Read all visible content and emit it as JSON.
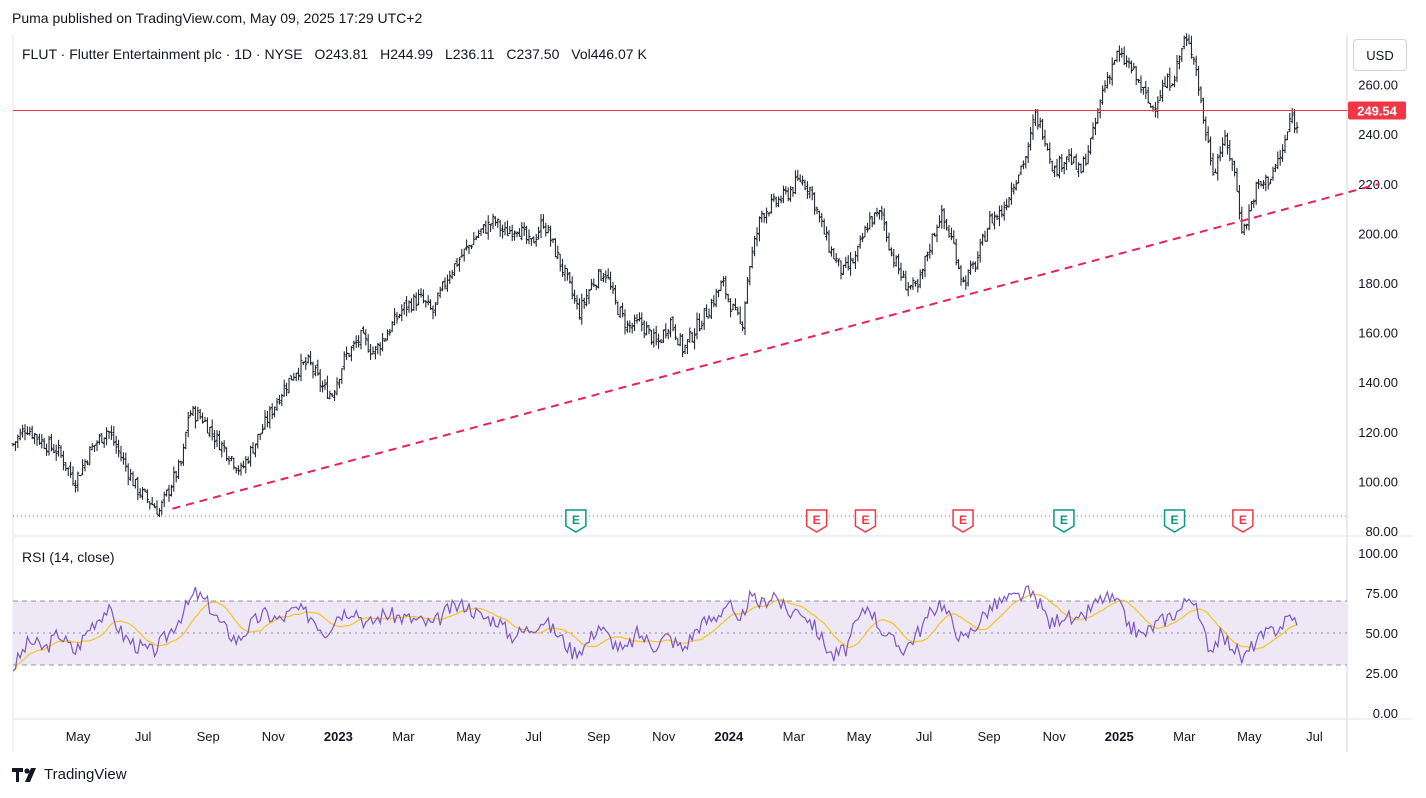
{
  "published": "Puma published on TradingView.com, May 09, 2025 17:29 UTC+2",
  "header": {
    "symbol_line": "FLUT · Flutter Entertainment plc · 1D · NYSE",
    "open_label": "O",
    "open": "243.81",
    "high_label": "H",
    "high": "244.99",
    "low_label": "L",
    "low": "236.11",
    "close_label": "C",
    "close": "237.50",
    "vol_label": "Vol",
    "vol": "446.07 K"
  },
  "currency_button": "USD",
  "last_price_label": "249.54",
  "rsi_title": "RSI (14, close)",
  "logo_text": "TradingView",
  "colors": {
    "candle": "#131722",
    "price_line": "#f23645",
    "trendline": "#e91e63",
    "rsi_line": "#7e57c2",
    "rsi_ma": "#f7c325",
    "rsi_band": "#ede7f6",
    "earnings_positive": "#089981",
    "earnings_negative": "#f23645"
  },
  "chart_data": [
    {
      "type": "candlestick",
      "y_ticks": [
        "80.00",
        "100.00",
        "120.00",
        "140.00",
        "160.00",
        "180.00",
        "200.00",
        "220.00",
        "240.00",
        "260.00"
      ],
      "ylim": [
        78,
        280
      ],
      "x_ticks": [
        {
          "label": "May",
          "t": 4,
          "bold": false
        },
        {
          "label": "Jul",
          "t": 6,
          "bold": false
        },
        {
          "label": "Sep",
          "t": 8,
          "bold": false
        },
        {
          "label": "Nov",
          "t": 10,
          "bold": false
        },
        {
          "label": "2023",
          "t": 12,
          "bold": true
        },
        {
          "label": "Mar",
          "t": 14,
          "bold": false
        },
        {
          "label": "May",
          "t": 16,
          "bold": false
        },
        {
          "label": "Jul",
          "t": 18,
          "bold": false
        },
        {
          "label": "Sep",
          "t": 20,
          "bold": false
        },
        {
          "label": "Nov",
          "t": 22,
          "bold": false
        },
        {
          "label": "2024",
          "t": 24,
          "bold": true
        },
        {
          "label": "Mar",
          "t": 26,
          "bold": false
        },
        {
          "label": "May",
          "t": 28,
          "bold": false
        },
        {
          "label": "Jul",
          "t": 30,
          "bold": false
        },
        {
          "label": "Sep",
          "t": 32,
          "bold": false
        },
        {
          "label": "Nov",
          "t": 34,
          "bold": false
        },
        {
          "label": "2025",
          "t": 36,
          "bold": true
        },
        {
          "label": "Mar",
          "t": 38,
          "bold": false
        },
        {
          "label": "May",
          "t": 40,
          "bold": false
        },
        {
          "label": "Jul",
          "t": 42,
          "bold": false
        }
      ],
      "price_path": [
        [
          2.0,
          115
        ],
        [
          2.4,
          122
        ],
        [
          2.9,
          116
        ],
        [
          3.4,
          112
        ],
        [
          3.9,
          100
        ],
        [
          4.4,
          113
        ],
        [
          4.9,
          121
        ],
        [
          5.4,
          108
        ],
        [
          5.8,
          97
        ],
        [
          6.2,
          92
        ],
        [
          6.5,
          88
        ],
        [
          6.9,
          100
        ],
        [
          7.2,
          108
        ],
        [
          7.4,
          128
        ],
        [
          7.8,
          126
        ],
        [
          8.2,
          118
        ],
        [
          8.7,
          110
        ],
        [
          9.0,
          104
        ],
        [
          9.3,
          112
        ],
        [
          9.7,
          122
        ],
        [
          10.2,
          135
        ],
        [
          10.7,
          145
        ],
        [
          11.1,
          148
        ],
        [
          11.5,
          138
        ],
        [
          11.8,
          135
        ],
        [
          12.2,
          150
        ],
        [
          12.7,
          158
        ],
        [
          13.1,
          152
        ],
        [
          13.5,
          160
        ],
        [
          14.0,
          170
        ],
        [
          14.5,
          174
        ],
        [
          14.9,
          168
        ],
        [
          15.4,
          184
        ],
        [
          15.9,
          193
        ],
        [
          16.3,
          200
        ],
        [
          16.8,
          205
        ],
        [
          17.1,
          200
        ],
        [
          17.5,
          203
        ],
        [
          17.9,
          195
        ],
        [
          18.3,
          205
        ],
        [
          18.6,
          195
        ],
        [
          19.0,
          182
        ],
        [
          19.4,
          168
        ],
        [
          19.8,
          180
        ],
        [
          20.2,
          185
        ],
        [
          20.5,
          172
        ],
        [
          20.9,
          162
        ],
        [
          21.3,
          164
        ],
        [
          21.8,
          155
        ],
        [
          22.2,
          165
        ],
        [
          22.6,
          153
        ],
        [
          23.0,
          162
        ],
        [
          23.4,
          170
        ],
        [
          23.8,
          180
        ],
        [
          24.1,
          170
        ],
        [
          24.4,
          162
        ],
        [
          24.6,
          185
        ],
        [
          25.0,
          208
        ],
        [
          25.4,
          212
        ],
        [
          25.8,
          216
        ],
        [
          26.2,
          222
        ],
        [
          26.5,
          218
        ],
        [
          26.8,
          205
        ],
        [
          27.1,
          194
        ],
        [
          27.5,
          184
        ],
        [
          27.9,
          190
        ],
        [
          28.3,
          205
        ],
        [
          28.7,
          208
        ],
        [
          29.0,
          192
        ],
        [
          29.4,
          180
        ],
        [
          29.8,
          177
        ],
        [
          30.1,
          192
        ],
        [
          30.5,
          208
        ],
        [
          30.9,
          196
        ],
        [
          31.2,
          180
        ],
        [
          31.6,
          188
        ],
        [
          32.0,
          205
        ],
        [
          32.4,
          209
        ],
        [
          32.8,
          222
        ],
        [
          33.2,
          233
        ],
        [
          33.4,
          248
        ],
        [
          33.7,
          240
        ],
        [
          34.0,
          225
        ],
        [
          34.4,
          232
        ],
        [
          34.8,
          224
        ],
        [
          35.2,
          240
        ],
        [
          35.5,
          258
        ],
        [
          35.9,
          272
        ],
        [
          36.3,
          268
        ],
        [
          36.7,
          258
        ],
        [
          37.0,
          250
        ],
        [
          37.3,
          258
        ],
        [
          37.7,
          264
        ],
        [
          38.0,
          278
        ],
        [
          38.3,
          272
        ],
        [
          38.6,
          245
        ],
        [
          38.9,
          225
        ],
        [
          39.2,
          238
        ],
        [
          39.5,
          228
        ],
        [
          39.8,
          200
        ],
        [
          40.2,
          218
        ],
        [
          40.6,
          222
        ],
        [
          41.0,
          232
        ],
        [
          41.3,
          248
        ],
        [
          41.5,
          240
        ]
      ],
      "last_close": 249.54,
      "trendline": [
        [
          6.9,
          89
        ],
        [
          44.0,
          220
        ]
      ],
      "earnings_markers": [
        {
          "t": 19.3,
          "label": "E",
          "kind": "positive"
        },
        {
          "t": 26.7,
          "label": "E",
          "kind": "negative"
        },
        {
          "t": 28.2,
          "label": "E",
          "kind": "negative"
        },
        {
          "t": 31.2,
          "label": "E",
          "kind": "negative"
        },
        {
          "t": 34.3,
          "label": "E",
          "kind": "positive"
        },
        {
          "t": 37.7,
          "label": "E",
          "kind": "positive"
        },
        {
          "t": 39.8,
          "label": "E",
          "kind": "negative"
        }
      ]
    },
    {
      "type": "line",
      "title": "RSI (14, close)",
      "y_ticks": [
        "0.00",
        "25.00",
        "50.00",
        "75.00",
        "100.00"
      ],
      "ylim": [
        0,
        100
      ],
      "bands": [
        30,
        50,
        70
      ],
      "rsi_path": [
        [
          2.0,
          28
        ],
        [
          2.5,
          45
        ],
        [
          3.0,
          40
        ],
        [
          3.4,
          50
        ],
        [
          3.9,
          38
        ],
        [
          4.4,
          55
        ],
        [
          4.9,
          65
        ],
        [
          5.4,
          48
        ],
        [
          5.8,
          42
        ],
        [
          6.3,
          38
        ],
        [
          6.8,
          50
        ],
        [
          7.3,
          65
        ],
        [
          7.6,
          75
        ],
        [
          8.0,
          68
        ],
        [
          8.4,
          55
        ],
        [
          8.9,
          45
        ],
        [
          9.3,
          55
        ],
        [
          9.7,
          62
        ],
        [
          10.2,
          58
        ],
        [
          10.7,
          65
        ],
        [
          11.2,
          60
        ],
        [
          11.6,
          50
        ],
        [
          12.0,
          62
        ],
        [
          12.5,
          65
        ],
        [
          12.9,
          55
        ],
        [
          13.4,
          62
        ],
        [
          13.9,
          60
        ],
        [
          14.4,
          58
        ],
        [
          14.9,
          55
        ],
        [
          15.4,
          65
        ],
        [
          15.9,
          68
        ],
        [
          16.4,
          60
        ],
        [
          16.9,
          58
        ],
        [
          17.3,
          48
        ],
        [
          17.8,
          52
        ],
        [
          18.3,
          58
        ],
        [
          18.8,
          48
        ],
        [
          19.2,
          38
        ],
        [
          19.6,
          42
        ],
        [
          20.0,
          55
        ],
        [
          20.4,
          45
        ],
        [
          20.8,
          38
        ],
        [
          21.2,
          50
        ],
        [
          21.7,
          42
        ],
        [
          22.1,
          48
        ],
        [
          22.6,
          40
        ],
        [
          23.1,
          55
        ],
        [
          23.6,
          60
        ],
        [
          24.0,
          70
        ],
        [
          24.3,
          52
        ],
        [
          24.6,
          72
        ],
        [
          25.0,
          68
        ],
        [
          25.4,
          75
        ],
        [
          25.8,
          62
        ],
        [
          26.2,
          65
        ],
        [
          26.6,
          55
        ],
        [
          26.9,
          45
        ],
        [
          27.2,
          35
        ],
        [
          27.6,
          40
        ],
        [
          27.9,
          55
        ],
        [
          28.3,
          68
        ],
        [
          28.6,
          55
        ],
        [
          29.0,
          45
        ],
        [
          29.4,
          40
        ],
        [
          29.8,
          50
        ],
        [
          30.2,
          62
        ],
        [
          30.5,
          70
        ],
        [
          30.9,
          55
        ],
        [
          31.2,
          45
        ],
        [
          31.6,
          55
        ],
        [
          32.0,
          65
        ],
        [
          32.4,
          70
        ],
        [
          32.8,
          72
        ],
        [
          33.2,
          75
        ],
        [
          33.5,
          70
        ],
        [
          33.9,
          55
        ],
        [
          34.3,
          62
        ],
        [
          34.7,
          55
        ],
        [
          35.1,
          65
        ],
        [
          35.5,
          72
        ],
        [
          35.9,
          70
        ],
        [
          36.3,
          55
        ],
        [
          36.7,
          48
        ],
        [
          37.1,
          55
        ],
        [
          37.5,
          60
        ],
        [
          37.9,
          65
        ],
        [
          38.2,
          75
        ],
        [
          38.5,
          55
        ],
        [
          38.8,
          40
        ],
        [
          39.1,
          48
        ],
        [
          39.5,
          42
        ],
        [
          39.8,
          33
        ],
        [
          40.2,
          45
        ],
        [
          40.6,
          50
        ],
        [
          41.0,
          55
        ],
        [
          41.3,
          62
        ],
        [
          41.5,
          52
        ]
      ]
    }
  ]
}
